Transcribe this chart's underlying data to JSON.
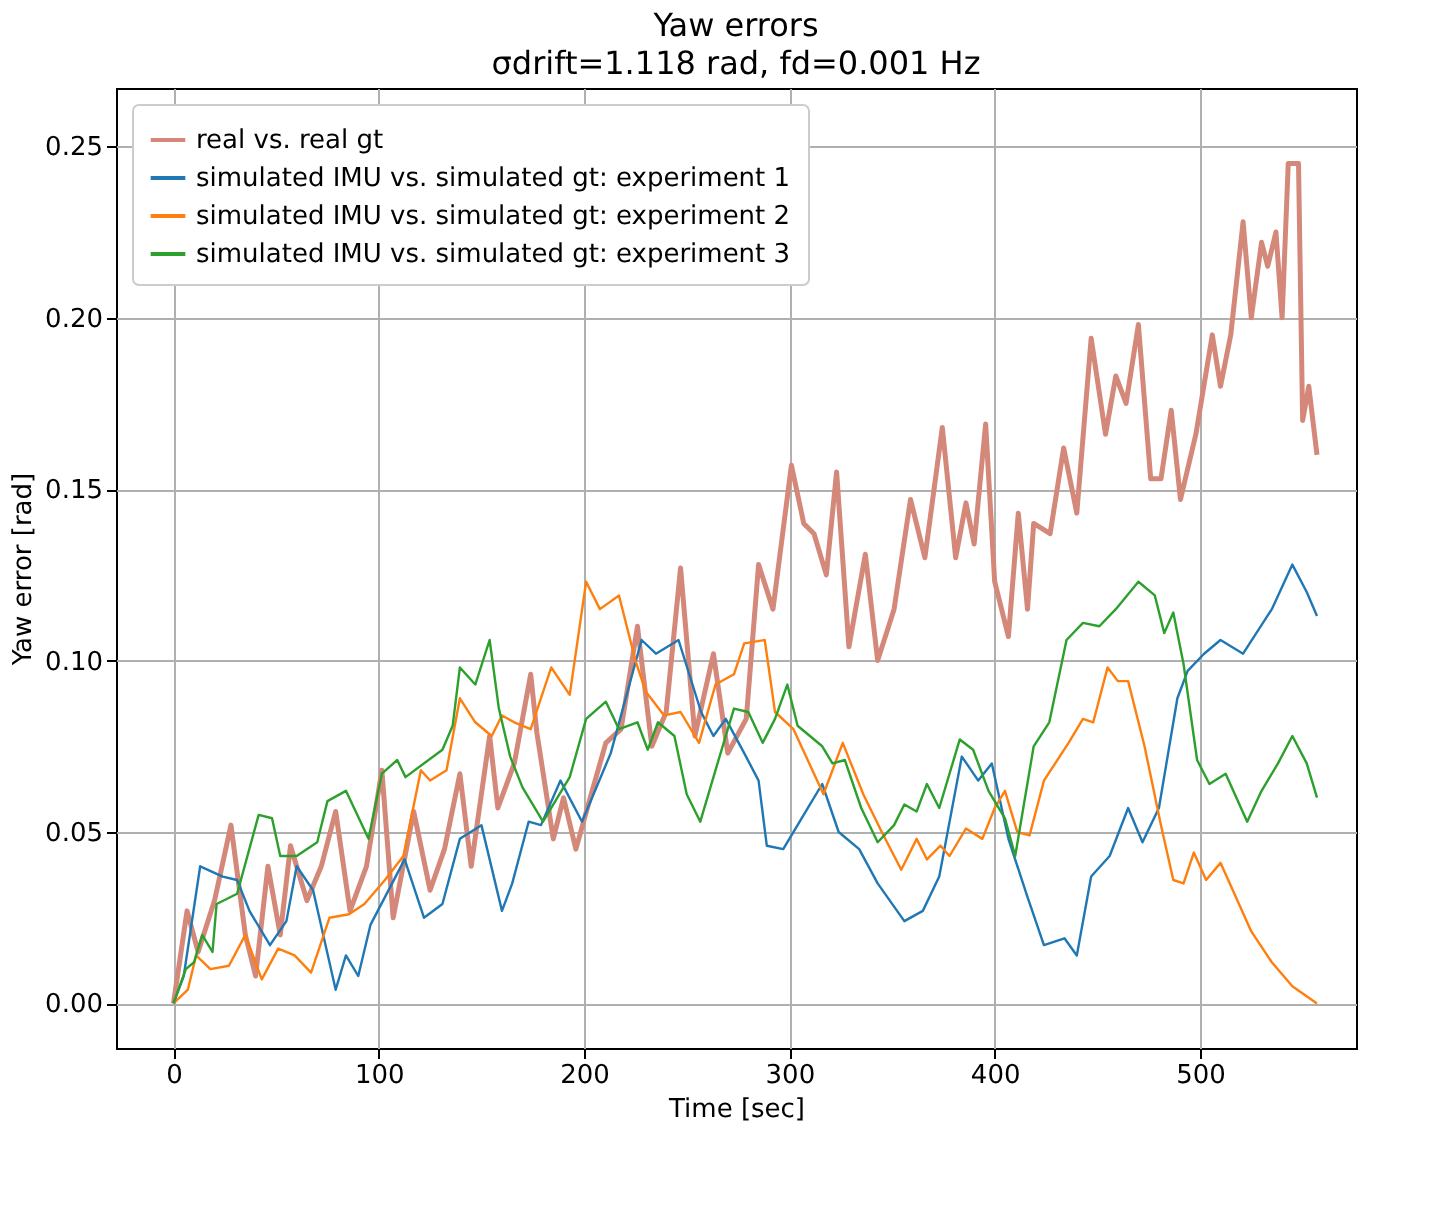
{
  "chart_data": {
    "type": "line",
    "title": "Yaw errors",
    "subtitle": "σdrift=1.118 rad, fd=0.001 Hz",
    "xlabel": "Time [sec]",
    "ylabel": "Yaw error [rad]",
    "xlim": [
      -28,
      576
    ],
    "ylim": [
      -0.013,
      0.267
    ],
    "xticks": [
      0,
      100,
      200,
      300,
      400,
      500
    ],
    "yticks": [
      {
        "value": 0,
        "label": "0.00"
      },
      {
        "value": 0.05,
        "label": "0.05"
      },
      {
        "value": 0.1,
        "label": "0.10"
      },
      {
        "value": 0.15,
        "label": "0.15"
      },
      {
        "value": 0.2,
        "label": "0.20"
      },
      {
        "value": 0.25,
        "label": "0.25"
      }
    ],
    "grid": true,
    "legend": "top left",
    "line_style": "solid",
    "marker": "none",
    "series": [
      {
        "name": "real vs. real gt",
        "color": "#d4887a",
        "x": [
          0,
          6.6,
          12,
          20,
          28,
          35,
          40,
          46,
          52,
          57,
          65,
          72,
          79,
          86,
          94,
          101.5,
          107,
          117,
          125,
          132,
          139.5,
          145,
          154,
          158,
          166,
          174,
          177,
          185,
          190,
          196,
          203,
          210.6,
          218,
          226,
          233,
          240,
          247,
          254,
          263,
          270,
          279,
          285,
          292,
          301,
          307,
          312,
          318,
          323,
          329,
          337,
          343,
          351,
          359,
          366,
          374.5,
          381,
          386,
          390,
          395.6,
          400,
          406.7,
          411.5,
          416,
          419,
          427,
          433.6,
          440,
          447,
          454,
          459,
          464,
          470,
          476,
          481,
          486,
          490.5,
          498,
          506,
          510,
          515,
          521,
          525,
          530,
          533,
          537,
          540,
          543,
          548,
          550,
          553,
          557
        ],
        "values": [
          0,
          0.027,
          0.015,
          0.03,
          0.052,
          0.02,
          0.008,
          0.04,
          0.02,
          0.046,
          0.03,
          0.04,
          0.056,
          0.027,
          0.04,
          0.068,
          0.025,
          0.056,
          0.033,
          0.045,
          0.067,
          0.04,
          0.078,
          0.057,
          0.07,
          0.096,
          0.079,
          0.048,
          0.06,
          0.045,
          0.06,
          0.076,
          0.08,
          0.11,
          0.075,
          0.085,
          0.127,
          0.078,
          0.102,
          0.073,
          0.083,
          0.128,
          0.115,
          0.157,
          0.14,
          0.137,
          0.125,
          0.155,
          0.104,
          0.131,
          0.1,
          0.115,
          0.147,
          0.13,
          0.168,
          0.13,
          0.146,
          0.134,
          0.169,
          0.123,
          0.107,
          0.143,
          0.115,
          0.14,
          0.137,
          0.162,
          0.143,
          0.194,
          0.166,
          0.183,
          0.175,
          0.198,
          0.153,
          0.153,
          0.173,
          0.147,
          0.166,
          0.195,
          0.18,
          0.195,
          0.228,
          0.2,
          0.222,
          0.215,
          0.225,
          0.2,
          0.245,
          0.245,
          0.17,
          0.18,
          0.16
        ]
      },
      {
        "name": "simulated IMU vs. simulated gt: experiment 1",
        "color": "#1f77b4",
        "x": [
          0,
          5,
          13,
          24,
          31,
          37,
          47,
          55,
          60,
          68,
          79,
          84,
          90,
          96,
          112.6,
          122,
          131,
          139.5,
          150,
          160,
          165,
          173,
          179,
          188.5,
          199,
          213,
          228,
          235,
          246,
          257,
          263,
          269,
          278,
          285,
          289,
          297,
          308,
          316,
          324,
          334,
          343,
          356,
          365,
          373,
          384,
          392,
          398.6,
          406.7,
          416,
          424,
          434,
          440,
          447,
          456,
          465,
          472,
          480,
          489,
          494,
          502,
          510,
          521,
          535,
          545,
          552,
          557
        ],
        "values": [
          0,
          0.008,
          0.04,
          0.037,
          0.036,
          0.027,
          0.017,
          0.024,
          0.04,
          0.033,
          0.004,
          0.014,
          0.008,
          0.023,
          0.042,
          0.025,
          0.029,
          0.048,
          0.052,
          0.027,
          0.035,
          0.053,
          0.052,
          0.065,
          0.053,
          0.073,
          0.106,
          0.102,
          0.106,
          0.085,
          0.078,
          0.083,
          0.073,
          0.065,
          0.046,
          0.045,
          0.056,
          0.064,
          0.05,
          0.045,
          0.035,
          0.024,
          0.027,
          0.037,
          0.072,
          0.065,
          0.07,
          0.048,
          0.031,
          0.017,
          0.019,
          0.014,
          0.037,
          0.043,
          0.057,
          0.047,
          0.057,
          0.089,
          0.097,
          0.102,
          0.106,
          0.102,
          0.115,
          0.128,
          0.12,
          0.113
        ]
      },
      {
        "name": "simulated IMU vs. simulated gt: experiment 2",
        "color": "#ff7f0e",
        "x": [
          0,
          7,
          11,
          18,
          27,
          35,
          43,
          51,
          59,
          67,
          76,
          85.5,
          93,
          103,
          112,
          120.5,
          125,
          133,
          139.5,
          147,
          155,
          160,
          166,
          174,
          184,
          193,
          201,
          207.7,
          217,
          225,
          230,
          239,
          247,
          256,
          264,
          273,
          278,
          288,
          293,
          302,
          316.6,
          326,
          336,
          345,
          354.5,
          362,
          367,
          373.6,
          378,
          386,
          394,
          400,
          405,
          411,
          417,
          424,
          436,
          443,
          448,
          455,
          460,
          465,
          473,
          481,
          487,
          492,
          497,
          503,
          510,
          516,
          525,
          535,
          545,
          557
        ],
        "values": [
          0,
          0.004,
          0.014,
          0.01,
          0.011,
          0.02,
          0.007,
          0.016,
          0.014,
          0.009,
          0.025,
          0.026,
          0.029,
          0.036,
          0.043,
          0.068,
          0.065,
          0.068,
          0.089,
          0.082,
          0.078,
          0.084,
          0.082,
          0.08,
          0.098,
          0.09,
          0.123,
          0.115,
          0.119,
          0.1,
          0.091,
          0.084,
          0.085,
          0.076,
          0.093,
          0.096,
          0.105,
          0.106,
          0.085,
          0.08,
          0.061,
          0.076,
          0.061,
          0.05,
          0.039,
          0.048,
          0.042,
          0.046,
          0.043,
          0.051,
          0.048,
          0.057,
          0.062,
          0.05,
          0.049,
          0.065,
          0.076,
          0.083,
          0.082,
          0.098,
          0.094,
          0.094,
          0.075,
          0.052,
          0.036,
          0.035,
          0.044,
          0.036,
          0.041,
          0.033,
          0.021,
          0.012,
          0.005,
          0
        ]
      },
      {
        "name": "simulated IMU vs. simulated gt: experiment 3",
        "color": "#2ca02c",
        "x": [
          0,
          6,
          10,
          14,
          19,
          21,
          31,
          41.5,
          48,
          52,
          60,
          70,
          75,
          84,
          95,
          101.5,
          109,
          113,
          131,
          136,
          139.5,
          147,
          154,
          158.5,
          164,
          170,
          180,
          193,
          201,
          210.6,
          217,
          226,
          231,
          236,
          244,
          250,
          256.6,
          264.5,
          273,
          280,
          287,
          293,
          299,
          304,
          316,
          321,
          327,
          335,
          343,
          351,
          356,
          362,
          367,
          373,
          383,
          389.5,
          397,
          405,
          410,
          419,
          426.6,
          435,
          443,
          451,
          459,
          470,
          478,
          482.6,
          487,
          492,
          498.6,
          504.6,
          512.5,
          523,
          530,
          538,
          545,
          552,
          557
        ],
        "values": [
          0,
          0.01,
          0.012,
          0.02,
          0.015,
          0.029,
          0.032,
          0.055,
          0.054,
          0.043,
          0.043,
          0.047,
          0.059,
          0.062,
          0.048,
          0.067,
          0.071,
          0.066,
          0.074,
          0.081,
          0.098,
          0.093,
          0.106,
          0.086,
          0.072,
          0.063,
          0.053,
          0.066,
          0.083,
          0.088,
          0.08,
          0.082,
          0.074,
          0.082,
          0.078,
          0.061,
          0.053,
          0.069,
          0.086,
          0.085,
          0.076,
          0.083,
          0.093,
          0.081,
          0.075,
          0.07,
          0.071,
          0.057,
          0.047,
          0.052,
          0.058,
          0.056,
          0.064,
          0.057,
          0.077,
          0.074,
          0.062,
          0.054,
          0.043,
          0.075,
          0.082,
          0.106,
          0.111,
          0.11,
          0.115,
          0.123,
          0.119,
          0.108,
          0.114,
          0.099,
          0.071,
          0.064,
          0.067,
          0.053,
          0.062,
          0.07,
          0.078,
          0.07,
          0.06
        ]
      }
    ]
  }
}
